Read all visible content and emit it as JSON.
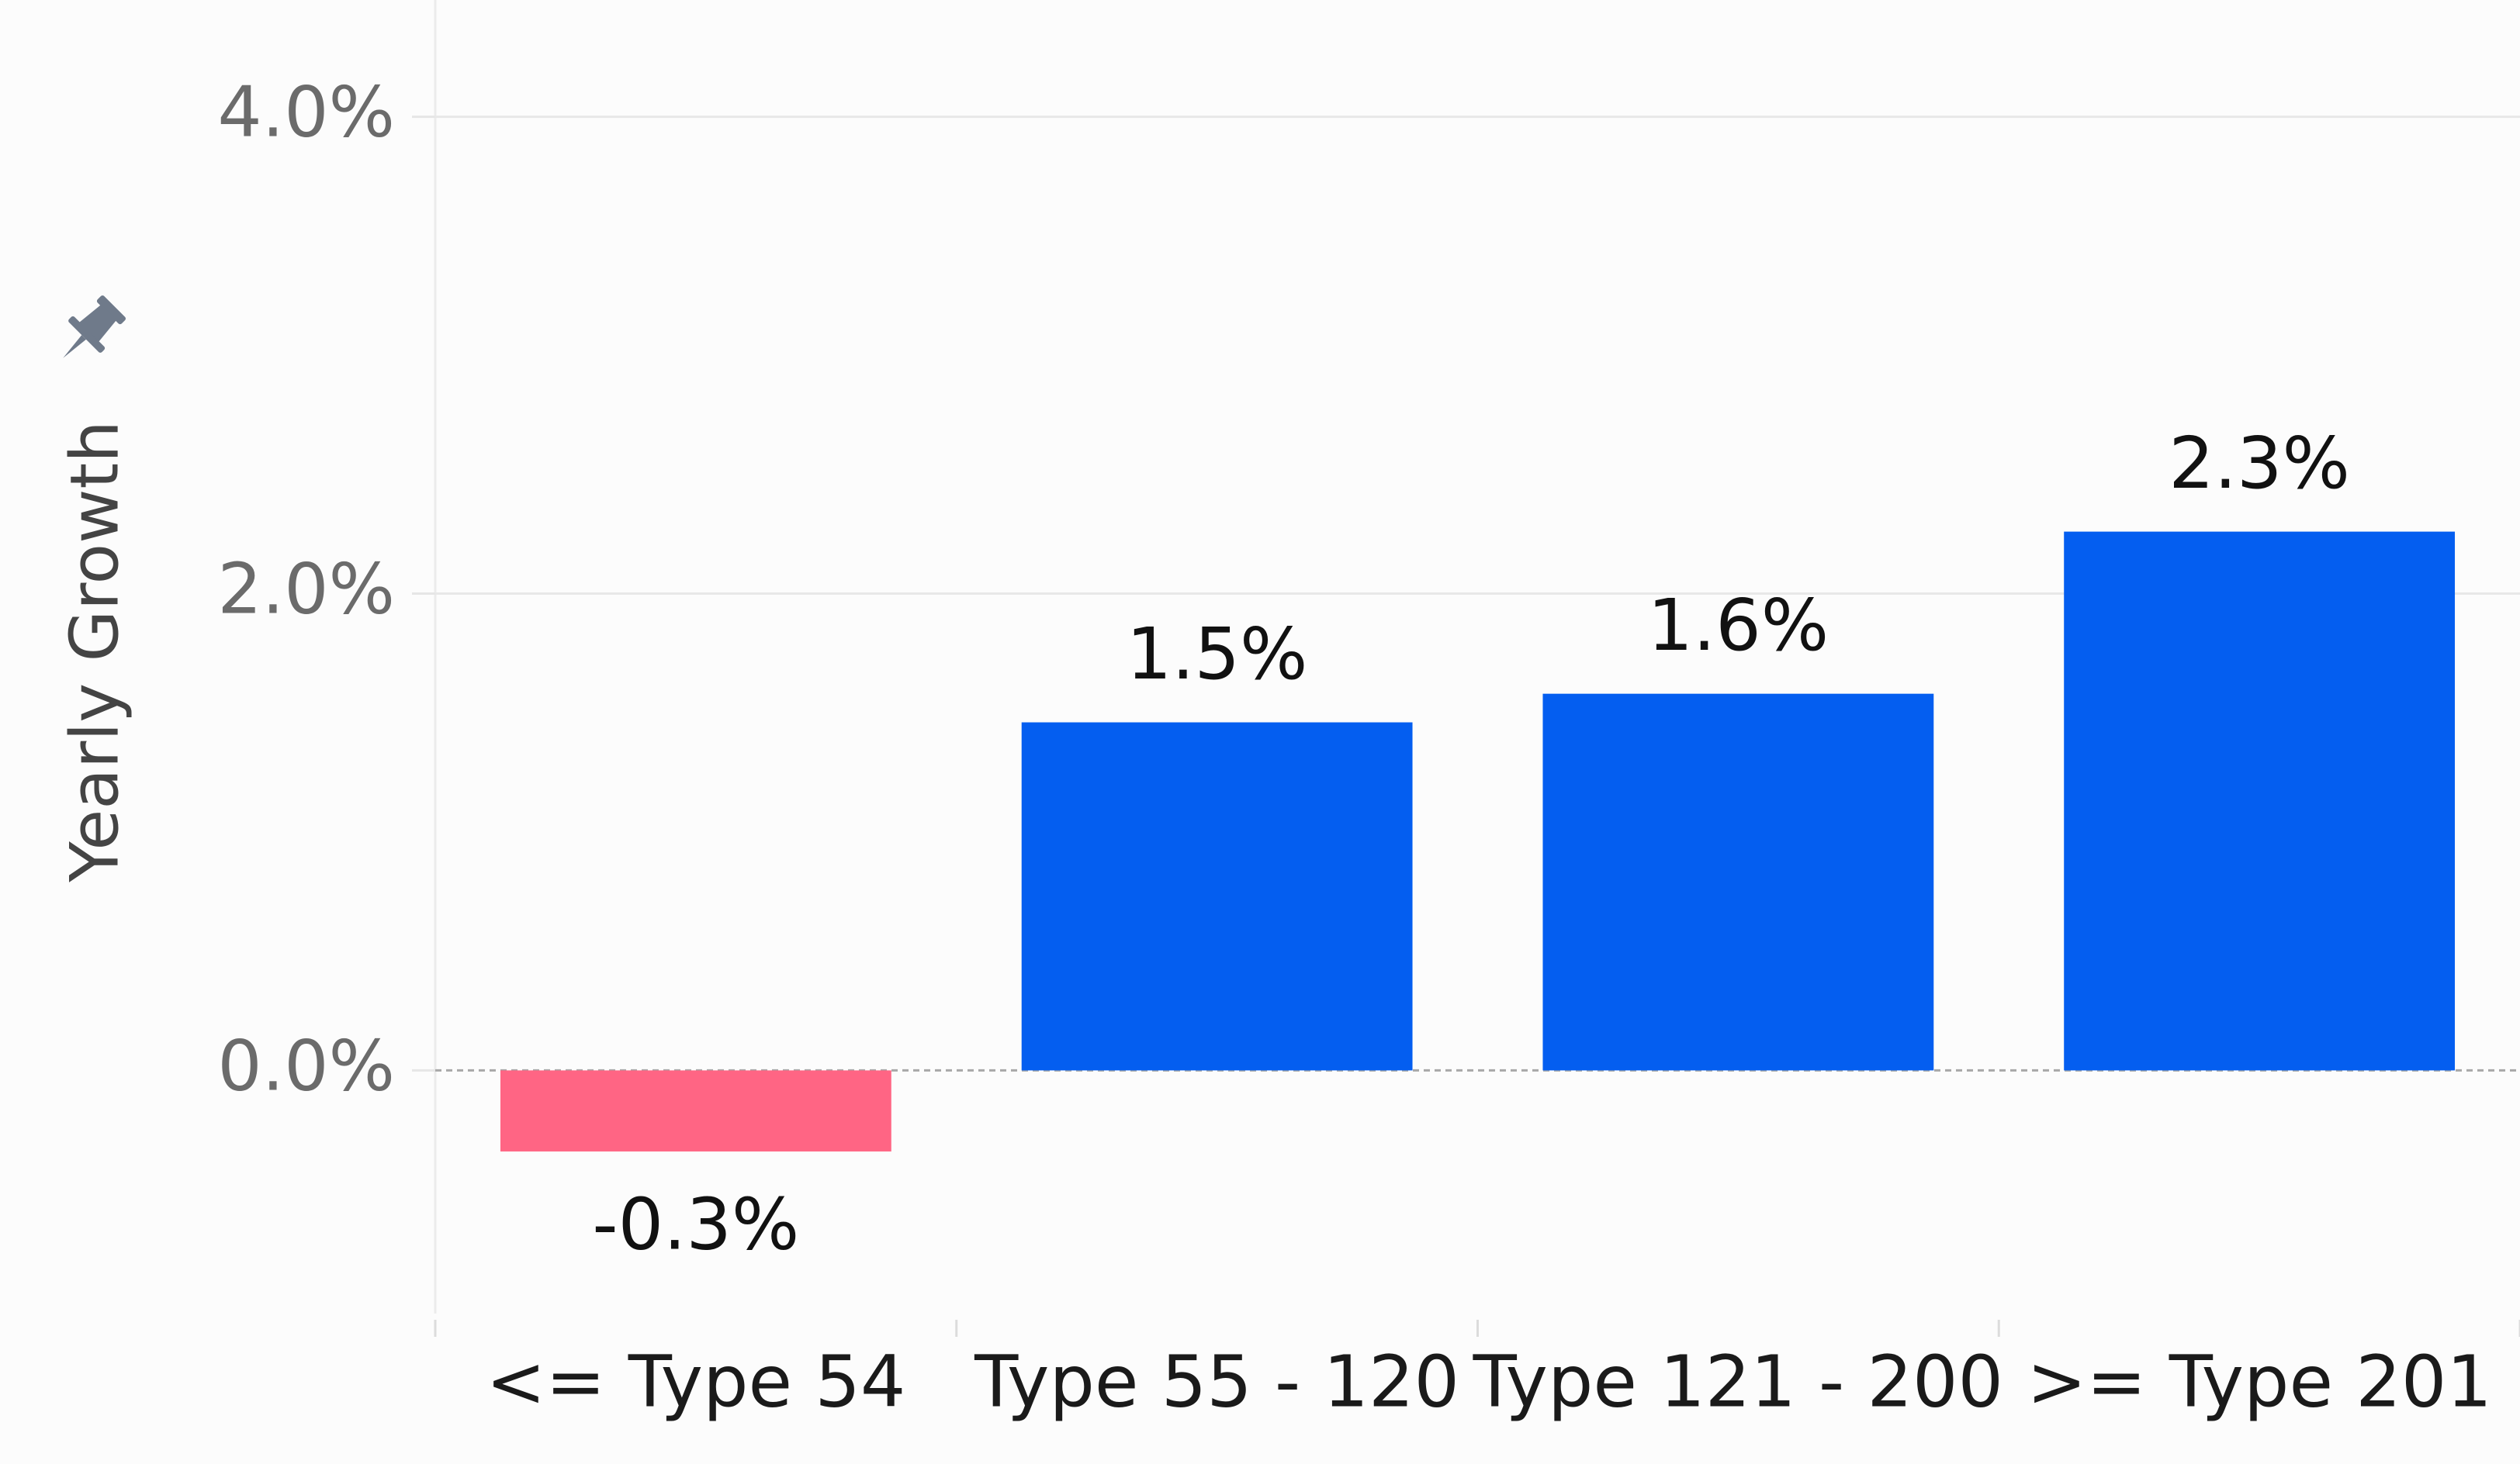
{
  "chart_data": {
    "type": "bar",
    "y_label": "Yearly Growth",
    "categories": [
      "<= Type 54",
      "Type 55 - 120",
      "Type 121 - 200",
      ">= Type 201"
    ],
    "values": [
      -0.34,
      1.46,
      1.58,
      2.26
    ],
    "value_labels": [
      "-0.3%",
      "1.5%",
      "1.6%",
      "2.3%"
    ],
    "colors": [
      "#ff6584",
      "#045ef0",
      "#045ef0",
      "#045ef0"
    ],
    "ylim": [
      -1.02,
      4.49
    ],
    "yticks": [
      {
        "value": 0,
        "label": "0.0%"
      },
      {
        "value": 2,
        "label": "2.0%"
      },
      {
        "value": 4,
        "label": "4.0%"
      }
    ],
    "grid": true
  }
}
